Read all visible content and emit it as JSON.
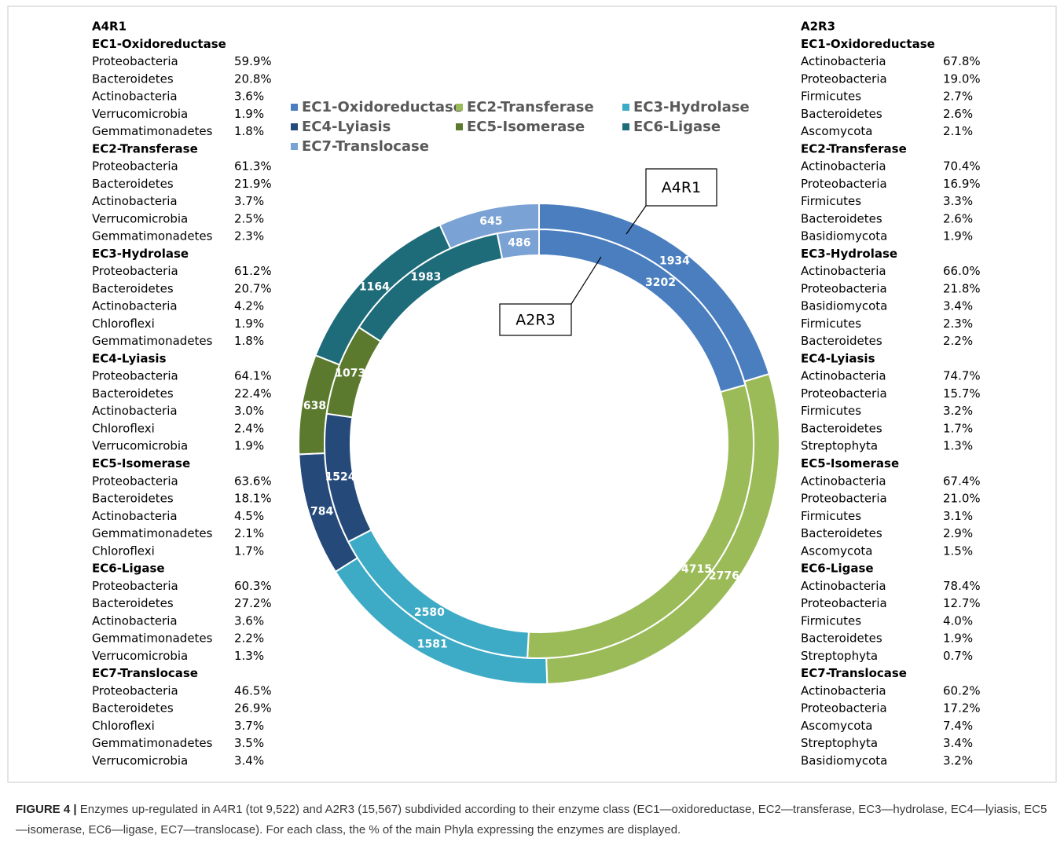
{
  "chart_data": {
    "type": "donut",
    "categories": [
      "EC1-Oxidoreductase",
      "EC2-Transferase",
      "EC3-Hydrolase",
      "EC4-Lyiasis",
      "EC5-Isomerase",
      "EC6-Ligase",
      "EC7-Translocase"
    ],
    "colors": [
      "#4a7ebf",
      "#9bbb59",
      "#3eabc6",
      "#254a7a",
      "#5c7a2e",
      "#1e6b7a",
      "#7ba2d4"
    ],
    "series": [
      {
        "name": "A4R1",
        "values": [
          1934,
          2776,
          1581,
          784,
          638,
          1164,
          645
        ]
      },
      {
        "name": "A2R3",
        "values": [
          3202,
          4715,
          2580,
          1524,
          1073,
          1983,
          486
        ]
      }
    ]
  },
  "tables": [
    {
      "title": "A4R1",
      "groups": [
        {
          "heading": "EC1-Oxidoreductase",
          "rows": [
            [
              "Proteobacteria",
              "59.9%"
            ],
            [
              "Bacteroidetes",
              "20.8%"
            ],
            [
              "Actinobacteria",
              "3.6%"
            ],
            [
              "Verrucomicrobia",
              "1.9%"
            ],
            [
              "Gemmatimonadetes",
              "1.8%"
            ]
          ]
        },
        {
          "heading": "EC2-Transferase",
          "rows": [
            [
              "Proteobacteria",
              "61.3%"
            ],
            [
              "Bacteroidetes",
              "21.9%"
            ],
            [
              "Actinobacteria",
              "3.7%"
            ],
            [
              "Verrucomicrobia",
              "2.5%"
            ],
            [
              "Gemmatimonadetes",
              "2.3%"
            ]
          ]
        },
        {
          "heading": "EC3-Hydrolase",
          "rows": [
            [
              "Proteobacteria",
              "61.2%"
            ],
            [
              "Bacteroidetes",
              "20.7%"
            ],
            [
              "Actinobacteria",
              "4.2%"
            ],
            [
              "Chloroflexi",
              "1.9%"
            ],
            [
              "Gemmatimonadetes",
              "1.8%"
            ]
          ]
        },
        {
          "heading": "EC4-Lyiasis",
          "rows": [
            [
              "Proteobacteria",
              "64.1%"
            ],
            [
              "Bacteroidetes",
              "22.4%"
            ],
            [
              "Actinobacteria",
              "3.0%"
            ],
            [
              "Chloroflexi",
              "2.4%"
            ],
            [
              "Verrucomicrobia",
              "1.9%"
            ]
          ]
        },
        {
          "heading": "EC5-Isomerase",
          "rows": [
            [
              "Proteobacteria",
              "63.6%"
            ],
            [
              "Bacteroidetes",
              "18.1%"
            ],
            [
              "Actinobacteria",
              "4.5%"
            ],
            [
              "Gemmatimonadetes",
              "2.1%"
            ],
            [
              "Chloroflexi",
              "1.7%"
            ]
          ]
        },
        {
          "heading": "EC6-Ligase",
          "rows": [
            [
              "Proteobacteria",
              "60.3%"
            ],
            [
              "Bacteroidetes",
              "27.2%"
            ],
            [
              "Actinobacteria",
              "3.6%"
            ],
            [
              "Gemmatimonadetes",
              "2.2%"
            ],
            [
              "Verrucomicrobia",
              "1.3%"
            ]
          ]
        },
        {
          "heading": "EC7-Translocase",
          "rows": [
            [
              "Proteobacteria",
              "46.5%"
            ],
            [
              "Bacteroidetes",
              "26.9%"
            ],
            [
              "Chloroflexi",
              "3.7%"
            ],
            [
              "Gemmatimonadetes",
              "3.5%"
            ],
            [
              "Verrucomicrobia",
              "3.4%"
            ]
          ]
        }
      ]
    },
    {
      "title": "A2R3",
      "groups": [
        {
          "heading": "EC1-Oxidoreductase",
          "rows": [
            [
              "Actinobacteria",
              "67.8%"
            ],
            [
              "Proteobacteria",
              "19.0%"
            ],
            [
              "Firmicutes",
              "2.7%"
            ],
            [
              "Bacteroidetes",
              "2.6%"
            ],
            [
              "Ascomycota",
              "2.1%"
            ]
          ]
        },
        {
          "heading": "EC2-Transferase",
          "rows": [
            [
              "Actinobacteria",
              "70.4%"
            ],
            [
              "Proteobacteria",
              "16.9%"
            ],
            [
              "Firmicutes",
              "3.3%"
            ],
            [
              "Bacteroidetes",
              "2.6%"
            ],
            [
              "Basidiomycota",
              "1.9%"
            ]
          ]
        },
        {
          "heading": "EC3-Hydrolase",
          "rows": [
            [
              "Actinobacteria",
              "66.0%"
            ],
            [
              "Proteobacteria",
              "21.8%"
            ],
            [
              "Basidiomycota",
              "3.4%"
            ],
            [
              "Firmicutes",
              "2.3%"
            ],
            [
              "Bacteroidetes",
              "2.2%"
            ]
          ]
        },
        {
          "heading": "EC4-Lyiasis",
          "rows": [
            [
              "Actinobacteria",
              "74.7%"
            ],
            [
              "Proteobacteria",
              "15.7%"
            ],
            [
              "Firmicutes",
              "3.2%"
            ],
            [
              "Bacteroidetes",
              "1.7%"
            ],
            [
              "Streptophyta",
              "1.3%"
            ]
          ]
        },
        {
          "heading": "EC5-Isomerase",
          "rows": [
            [
              "Actinobacteria",
              "67.4%"
            ],
            [
              "Proteobacteria",
              "21.0%"
            ],
            [
              "Firmicutes",
              "3.1%"
            ],
            [
              "Bacteroidetes",
              "2.9%"
            ],
            [
              "Ascomycota",
              "1.5%"
            ]
          ]
        },
        {
          "heading": "EC6-Ligase",
          "rows": [
            [
              "Actinobacteria",
              "78.4%"
            ],
            [
              "Proteobacteria",
              "12.7%"
            ],
            [
              "Firmicutes",
              "4.0%"
            ],
            [
              "Bacteroidetes",
              "1.9%"
            ],
            [
              "Streptophyta",
              "0.7%"
            ]
          ]
        },
        {
          "heading": "EC7-Translocase",
          "rows": [
            [
              "Actinobacteria",
              "60.2%"
            ],
            [
              "Proteobacteria",
              "17.2%"
            ],
            [
              "Ascomycota",
              "7.4%"
            ],
            [
              "Streptophyta",
              "3.4%"
            ],
            [
              "Basidiomycota",
              "3.2%"
            ]
          ]
        }
      ]
    }
  ],
  "caption": {
    "label": "FIGURE 4 |",
    "text": "Enzymes up-regulated in A4R1 (tot 9,522) and A2R3 (15,567) subdivided according to their enzyme class (EC1—oxidoreductase, EC2—transferase, EC3—hydrolase, EC4—lyiasis, EC5—isomerase, EC6—ligase, EC7—translocase). For each class, the % of the main Phyla expressing the enzymes are displayed."
  }
}
